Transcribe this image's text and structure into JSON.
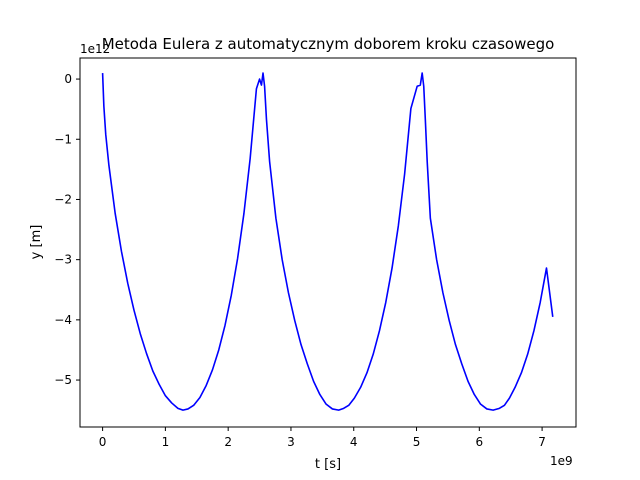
{
  "chart_data": {
    "type": "line",
    "title": "Metoda Eulera z automatycznym doborem kroku czasowego",
    "xlabel": "t [s]",
    "ylabel": "y [m]",
    "x_offset_label": "1e9",
    "y_offset_label": "1e12",
    "xlim": [
      -0.36,
      7.54
    ],
    "ylim": [
      -5.78,
      0.35
    ],
    "x_ticks": [
      0,
      1,
      2,
      3,
      4,
      5,
      6,
      7
    ],
    "y_ticks": [
      0,
      -1,
      -2,
      -3,
      -4,
      -5
    ],
    "x_tick_labels": [
      "0",
      "1",
      "2",
      "3",
      "4",
      "5",
      "6",
      "7"
    ],
    "y_tick_labels": [
      "0",
      "−1",
      "−2",
      "−3",
      "−4",
      "−5"
    ],
    "grid": false,
    "series": [
      {
        "color": "#0000ff",
        "x": [
          0.0,
          0.02,
          0.05,
          0.1,
          0.2,
          0.3,
          0.4,
          0.5,
          0.6,
          0.7,
          0.8,
          0.9,
          1.0,
          1.1,
          1.2,
          1.28,
          1.36,
          1.45,
          1.55,
          1.65,
          1.75,
          1.85,
          1.95,
          2.05,
          2.15,
          2.25,
          2.35,
          2.45,
          2.5,
          2.53,
          2.555,
          2.58,
          2.61,
          2.66,
          2.76,
          2.86,
          2.96,
          3.06,
          3.16,
          3.26,
          3.36,
          3.46,
          3.56,
          3.66,
          3.76,
          3.84,
          3.92,
          4.01,
          4.11,
          4.21,
          4.31,
          4.41,
          4.51,
          4.61,
          4.71,
          4.81,
          4.91,
          5.01,
          5.06,
          5.09,
          5.115,
          5.14,
          5.17,
          5.22,
          5.32,
          5.42,
          5.52,
          5.62,
          5.72,
          5.82,
          5.92,
          6.02,
          6.12,
          6.22,
          6.32,
          6.4,
          6.48,
          6.57,
          6.67,
          6.77,
          6.87,
          6.97,
          7.07,
          7.17
        ],
        "y": [
          0.1,
          -0.45,
          -0.92,
          -1.43,
          -2.23,
          -2.86,
          -3.39,
          -3.84,
          -4.23,
          -4.56,
          -4.85,
          -5.07,
          -5.26,
          -5.38,
          -5.47,
          -5.5,
          -5.48,
          -5.42,
          -5.29,
          -5.09,
          -4.83,
          -4.5,
          -4.09,
          -3.59,
          -2.98,
          -2.24,
          -1.32,
          -0.16,
          0.0,
          -0.1,
          0.1,
          -0.12,
          -0.67,
          -1.37,
          -2.31,
          -3.0,
          -3.55,
          -4.01,
          -4.41,
          -4.73,
          -5.02,
          -5.24,
          -5.4,
          -5.48,
          -5.5,
          -5.47,
          -5.42,
          -5.3,
          -5.12,
          -4.88,
          -4.57,
          -4.18,
          -3.71,
          -3.14,
          -2.44,
          -1.58,
          -0.49,
          -0.12,
          -0.1,
          0.1,
          -0.12,
          -0.67,
          -1.37,
          -2.31,
          -3.0,
          -3.55,
          -4.01,
          -4.41,
          -4.73,
          -5.02,
          -5.24,
          -5.4,
          -5.48,
          -5.5,
          -5.47,
          -5.42,
          -5.3,
          -5.12,
          -4.88,
          -4.57,
          -4.18,
          -3.71,
          -3.14,
          -3.95
        ]
      }
    ]
  }
}
